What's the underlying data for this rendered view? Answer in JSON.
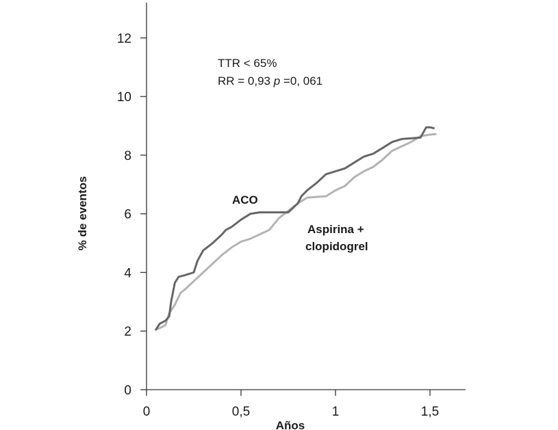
{
  "chart_data": {
    "type": "line",
    "xlabel": "Años",
    "ylabel": "% de eventos",
    "xlim": [
      0,
      1.68
    ],
    "ylim": [
      0,
      13.2
    ],
    "xticks": [
      0,
      0.5,
      1,
      1.5
    ],
    "xtick_labels": [
      "0",
      "0,5",
      "1",
      "1,5"
    ],
    "yticks": [
      0,
      2,
      4,
      6,
      8,
      10,
      12
    ],
    "ytick_labels": [
      "0",
      "2",
      "4",
      "6",
      "8",
      "10",
      "12"
    ],
    "grid": false,
    "legend": "none",
    "annotation": {
      "line1": "TTR < 65%",
      "line2_prefix": "RR = 0,93 ",
      "line2_italic": "p",
      "line2_suffix": " =0, 061"
    },
    "series": [
      {
        "name": "ACO",
        "color": "#666666",
        "points": [
          [
            0.05,
            2.05
          ],
          [
            0.07,
            2.25
          ],
          [
            0.1,
            2.35
          ],
          [
            0.12,
            2.5
          ],
          [
            0.13,
            3.0
          ],
          [
            0.15,
            3.65
          ],
          [
            0.17,
            3.85
          ],
          [
            0.2,
            3.9
          ],
          [
            0.25,
            4.0
          ],
          [
            0.27,
            4.4
          ],
          [
            0.3,
            4.75
          ],
          [
            0.35,
            5.0
          ],
          [
            0.4,
            5.3
          ],
          [
            0.42,
            5.45
          ],
          [
            0.45,
            5.55
          ],
          [
            0.5,
            5.8
          ],
          [
            0.55,
            6.0
          ],
          [
            0.6,
            6.05
          ],
          [
            0.75,
            6.05
          ],
          [
            0.8,
            6.35
          ],
          [
            0.82,
            6.6
          ],
          [
            0.85,
            6.8
          ],
          [
            0.9,
            7.05
          ],
          [
            0.95,
            7.35
          ],
          [
            1.0,
            7.45
          ],
          [
            1.05,
            7.55
          ],
          [
            1.1,
            7.75
          ],
          [
            1.15,
            7.95
          ],
          [
            1.2,
            8.05
          ],
          [
            1.25,
            8.25
          ],
          [
            1.3,
            8.45
          ],
          [
            1.35,
            8.55
          ],
          [
            1.45,
            8.6
          ],
          [
            1.48,
            8.95
          ],
          [
            1.5,
            8.95
          ],
          [
            1.52,
            8.92
          ]
        ]
      },
      {
        "name": "Aspirina + clopidogrel",
        "color": "#b3b3b3",
        "points": [
          [
            0.05,
            2.05
          ],
          [
            0.07,
            2.1
          ],
          [
            0.1,
            2.2
          ],
          [
            0.12,
            2.6
          ],
          [
            0.15,
            2.9
          ],
          [
            0.18,
            3.3
          ],
          [
            0.2,
            3.4
          ],
          [
            0.25,
            3.7
          ],
          [
            0.3,
            4.0
          ],
          [
            0.35,
            4.3
          ],
          [
            0.4,
            4.6
          ],
          [
            0.45,
            4.85
          ],
          [
            0.5,
            5.05
          ],
          [
            0.55,
            5.15
          ],
          [
            0.6,
            5.3
          ],
          [
            0.65,
            5.45
          ],
          [
            0.7,
            5.85
          ],
          [
            0.75,
            6.1
          ],
          [
            0.8,
            6.35
          ],
          [
            0.85,
            6.55
          ],
          [
            0.95,
            6.6
          ],
          [
            1.0,
            6.8
          ],
          [
            1.05,
            6.95
          ],
          [
            1.1,
            7.25
          ],
          [
            1.15,
            7.45
          ],
          [
            1.2,
            7.6
          ],
          [
            1.25,
            7.85
          ],
          [
            1.3,
            8.15
          ],
          [
            1.35,
            8.3
          ],
          [
            1.4,
            8.45
          ],
          [
            1.45,
            8.65
          ],
          [
            1.5,
            8.7
          ],
          [
            1.53,
            8.72
          ]
        ]
      }
    ],
    "series_labels": {
      "aco": "ACO",
      "asp_line1": "Aspirina +",
      "asp_line2": "clopidogrel"
    }
  }
}
